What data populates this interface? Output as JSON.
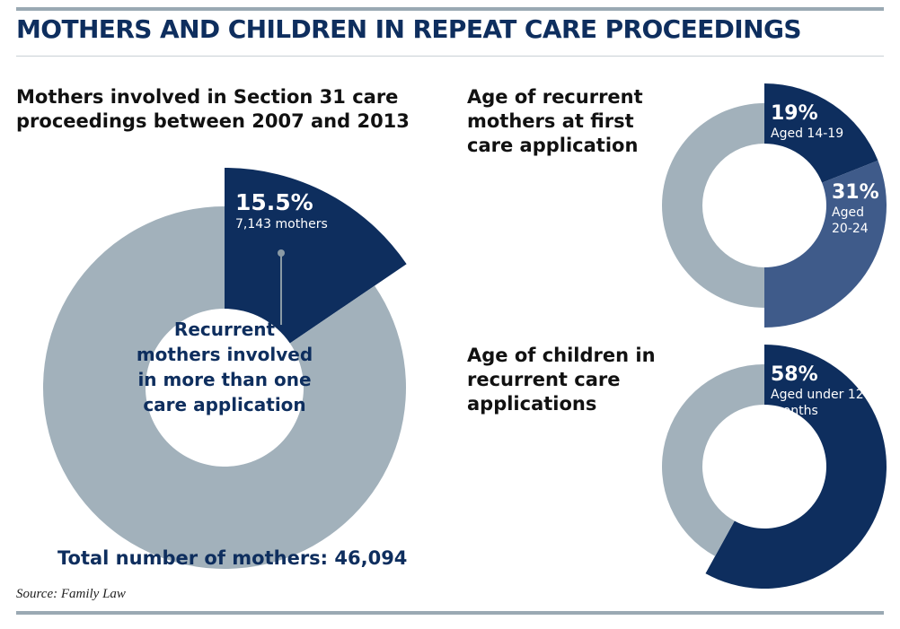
{
  "title": "MOTHERS AND CHILDREN IN REPEAT CARE PROCEEDINGS",
  "source": "Source: Family Law",
  "colors": {
    "dark": "#0e2e5e",
    "mid": "#3f5b8a",
    "grey": "#a2b1bb"
  },
  "chart_data": [
    {
      "type": "pie",
      "title_lines": [
        "Mothers involved in Section 31 care",
        "proceedings between 2007 and 2013"
      ],
      "slices": [
        {
          "name": "Recurrent mothers",
          "percent": 15.5,
          "pct_label": "15.5%",
          "sub_lines": [
            "7,143 mothers"
          ]
        },
        {
          "name": "",
          "percent": 84.5
        }
      ],
      "center_label_lines": [
        "Recurrent",
        "mothers involved",
        "in more than one",
        "care application"
      ],
      "total_label": "Total number of mothers: 46,094"
    },
    {
      "type": "pie",
      "title_lines": [
        "Age of recurrent",
        "mothers at first",
        "care application"
      ],
      "slices": [
        {
          "name": "Aged 14-19",
          "percent": 19,
          "pct_label": "19%",
          "sub_lines": [
            "Aged 14-19"
          ]
        },
        {
          "name": "Aged 20-24",
          "percent": 31,
          "pct_label": "31%",
          "sub_lines": [
            "Aged",
            "20-24"
          ]
        },
        {
          "name": "",
          "percent": 50
        }
      ]
    },
    {
      "type": "pie",
      "title_lines": [
        "Age of children in",
        "recurrent care",
        "applications"
      ],
      "slices": [
        {
          "name": "Aged under 12 months",
          "percent": 58,
          "pct_label": "58%",
          "sub_lines": [
            "Aged under 12",
            "months"
          ]
        },
        {
          "name": "",
          "percent": 42
        }
      ]
    }
  ]
}
